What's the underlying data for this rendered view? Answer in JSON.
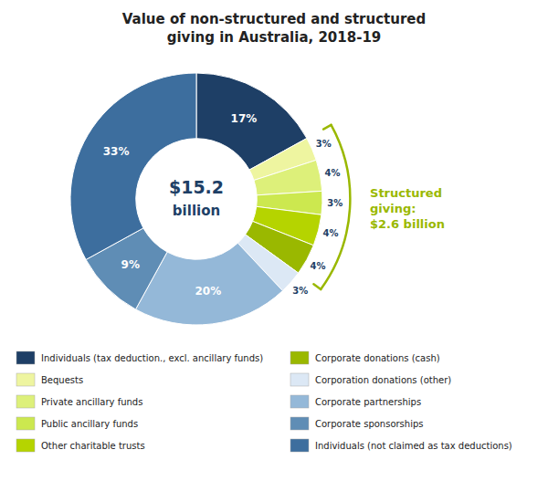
{
  "chart_data": {
    "type": "pie",
    "title": "Value of non-structured and structured\ngiving in Australia, 2018-19",
    "categories": [
      "Individuals (tax deduction., excl. ancillary funds)",
      "Bequests",
      "Private ancillary funds",
      "Public ancillary funds",
      "Other charitable trusts",
      "Corporate donations (cash)",
      "Corporation donations (other)",
      "Corporate partnerships",
      "Corporate sponsorships",
      "Individuals (not claimed as tax deductions)"
    ],
    "values": [
      17,
      3,
      4,
      3,
      4,
      4,
      3,
      20,
      9,
      33
    ],
    "value_labels": [
      "17%",
      "3%",
      "4%",
      "3%",
      "4%",
      "4%",
      "3%",
      "20%",
      "9%",
      "33%"
    ],
    "data_labels": true,
    "colors": [
      "#1e3f66",
      "#eef5a0",
      "#ddf07a",
      "#cce84f",
      "#b5d400",
      "#9ab800",
      "#dce8f5",
      "#94b8d8",
      "#5f8db5",
      "#3d6e9e"
    ],
    "legend": "bottom",
    "annotations": [
      {
        "text": "$15.2"
      },
      {
        "text": "billion"
      },
      {
        "text": "Structured\ngiving:\n$2.6 billion",
        "color": "#9ab800",
        "slices": [
          1,
          2,
          3,
          4,
          5
        ]
      }
    ]
  }
}
